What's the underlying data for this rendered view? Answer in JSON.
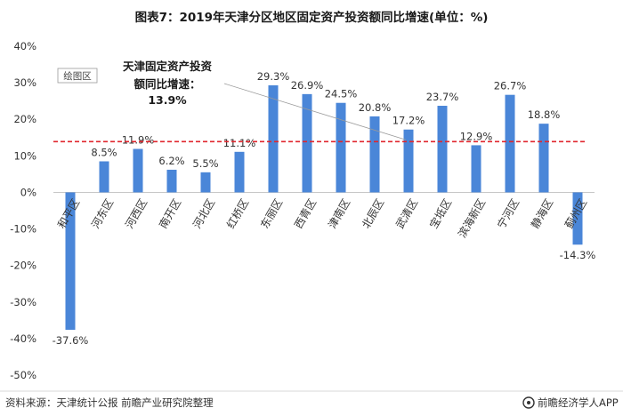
{
  "chart_data": {
    "type": "bar",
    "title": "图表7：2019年天津分区地区固定资产投资额同比增速(单位：%)",
    "categories": [
      "和平区",
      "河东区",
      "河西区",
      "南开区",
      "河北区",
      "红桥区",
      "东丽区",
      "西青区",
      "津南区",
      "北辰区",
      "武清区",
      "宝坻区",
      "滨海新区",
      "宁河区",
      "静海区",
      "蓟州区"
    ],
    "values": [
      -37.6,
      8.5,
      11.9,
      6.2,
      5.5,
      11.1,
      29.3,
      26.9,
      24.5,
      20.8,
      17.2,
      23.7,
      12.9,
      26.7,
      18.8,
      -14.3
    ],
    "value_labels": [
      "-37.6%",
      "8.5%",
      "11.9%",
      "6.2%",
      "5.5%",
      "11.1%",
      "29.3%",
      "26.9%",
      "24.5%",
      "20.8%",
      "17.2%",
      "23.7%",
      "12.9%",
      "26.7%",
      "18.8%",
      "-14.3%"
    ],
    "yticks": [
      "40%",
      "30%",
      "20%",
      "10%",
      "0%",
      "-10%",
      "-20%",
      "-30%",
      "-40%",
      "-50%"
    ],
    "ylim": [
      -50,
      40
    ],
    "reference_line": {
      "value": 13.9,
      "style": "dashed",
      "annotation_lines": [
        "天津固定资产投资",
        "额同比增速：",
        "13.9%"
      ]
    },
    "bar_color": "#4a86d8",
    "reference_color": "#e0262d",
    "legend_label": "绘图区",
    "grid": false
  },
  "footer": {
    "source": "资料来源：天津统计公报 前瞻产业研究院整理",
    "brand": "前瞻经济学人APP"
  }
}
